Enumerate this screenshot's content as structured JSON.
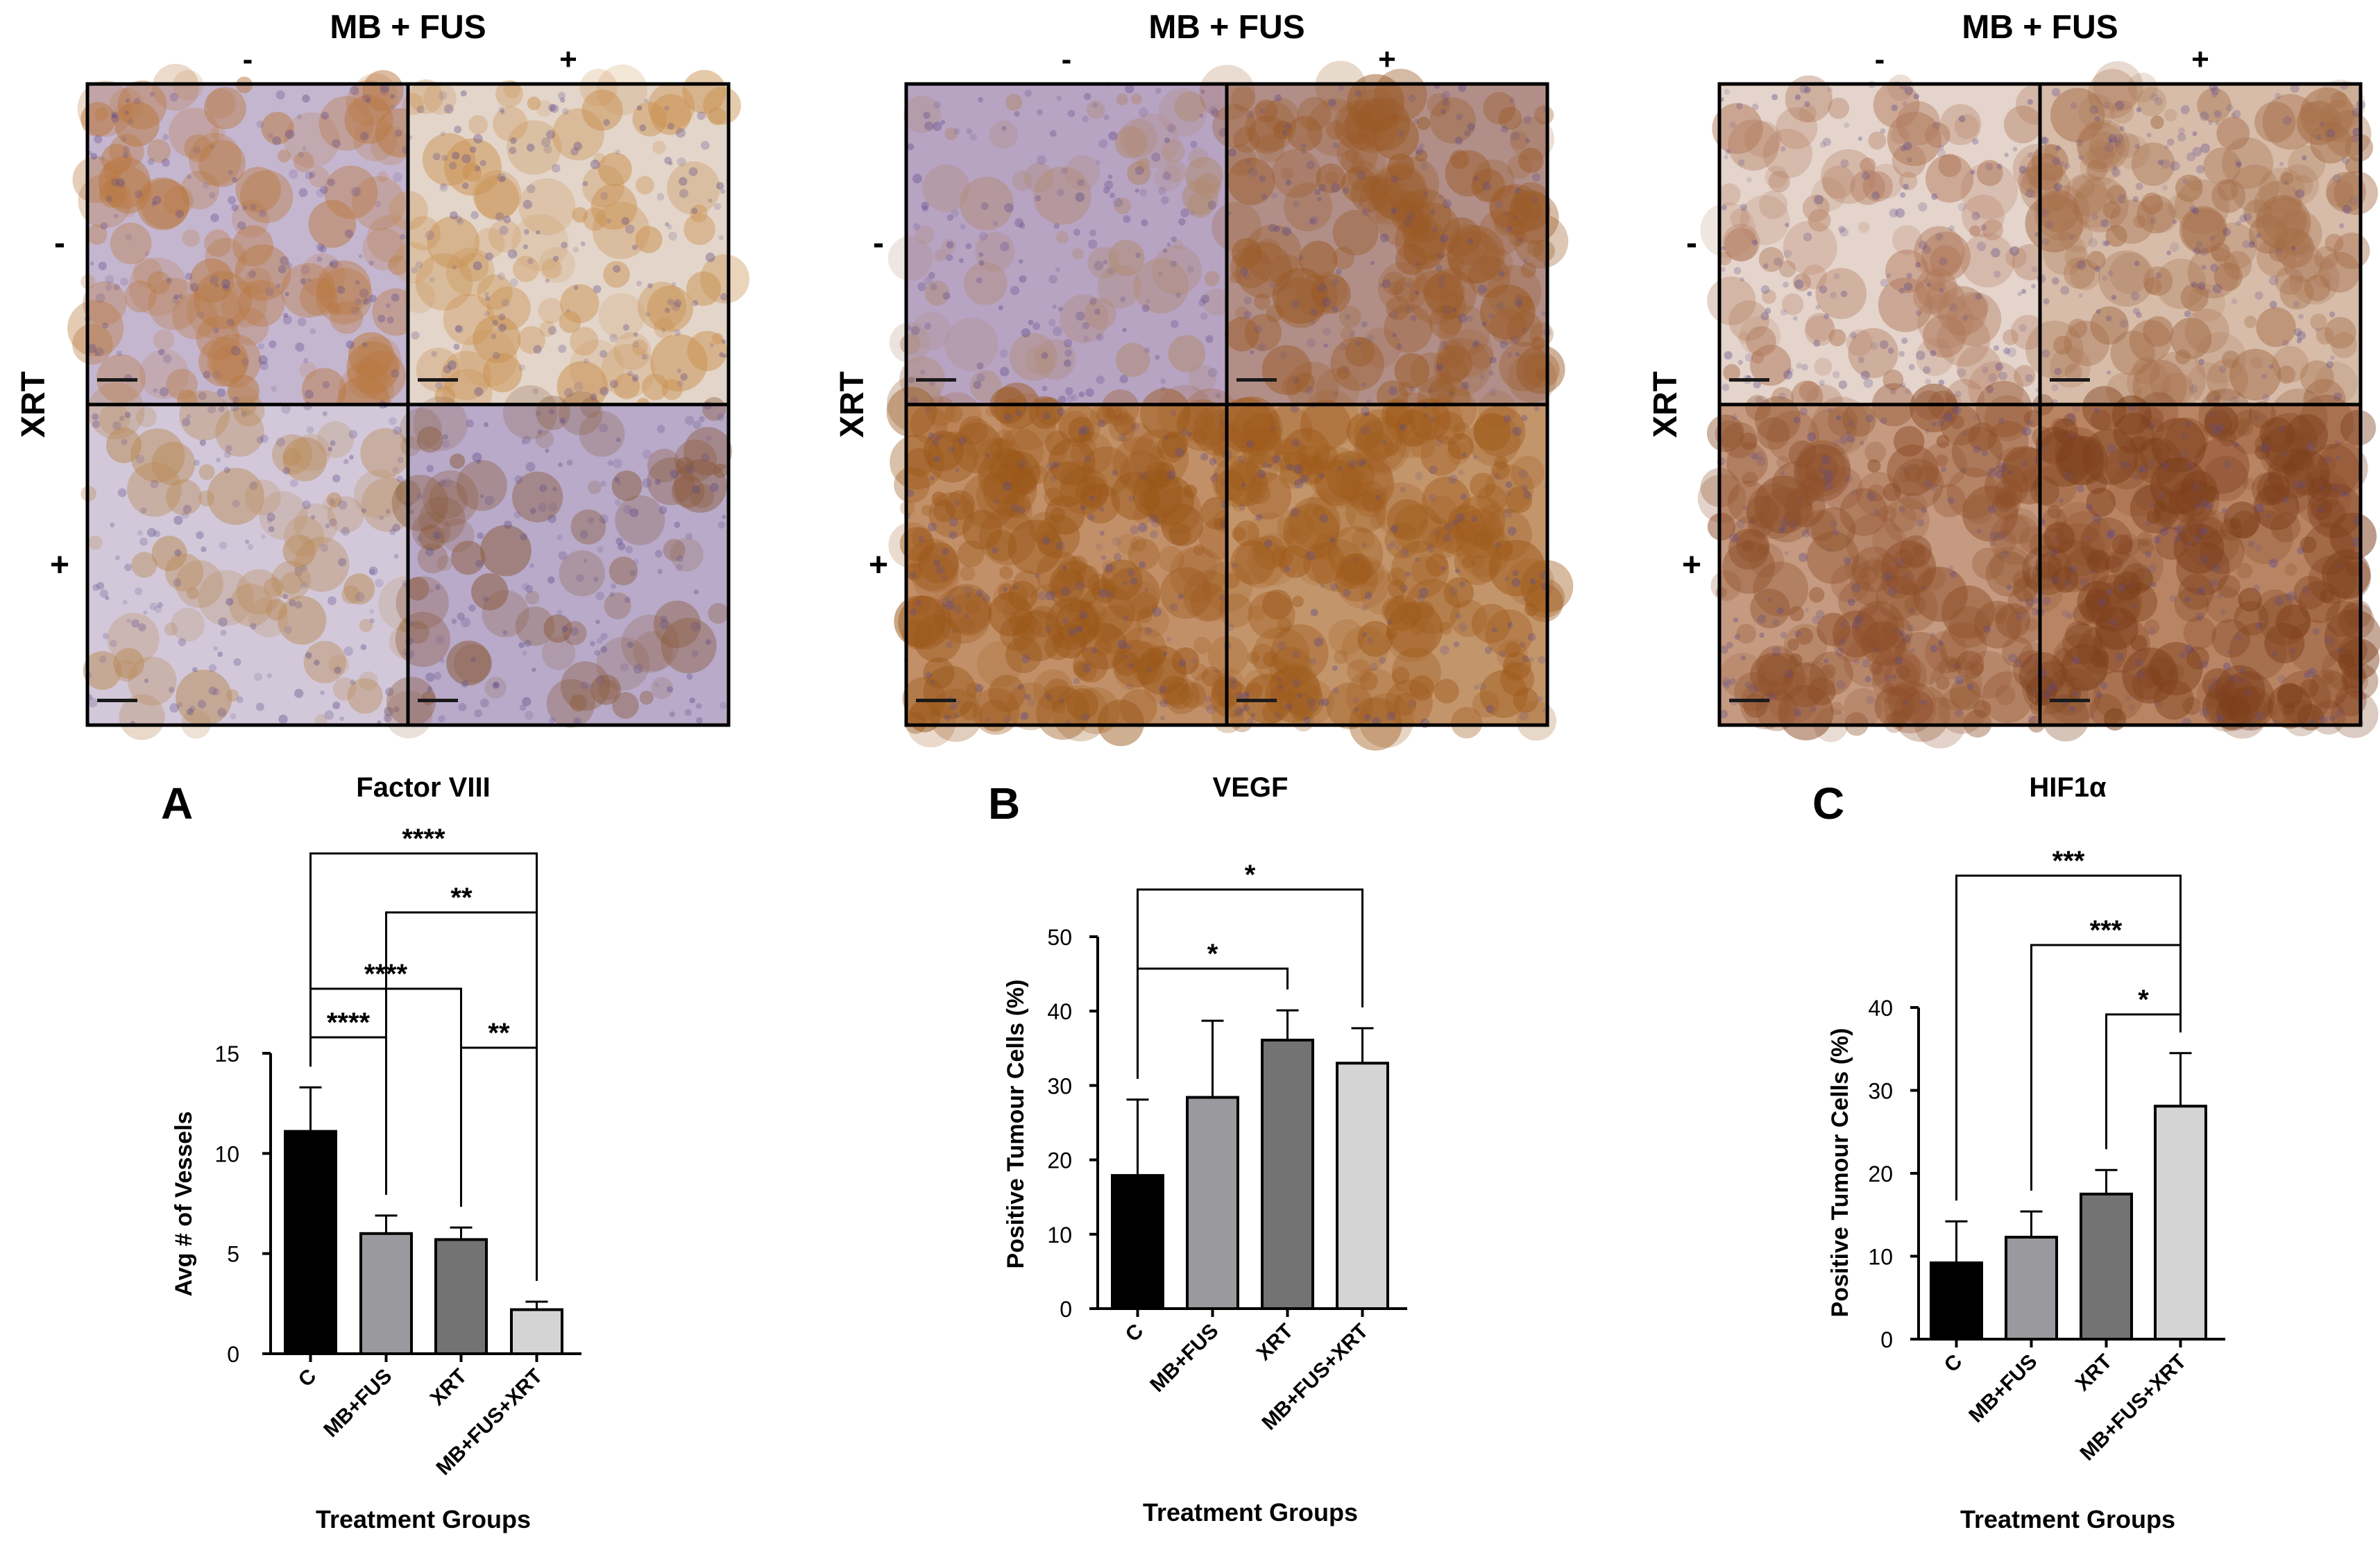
{
  "micrographs": [
    {
      "column_label": "MB + FUS",
      "col_minus": "-",
      "col_plus": "+",
      "row_axis": "XRT",
      "row_minus": "-",
      "row_plus": "+",
      "tiles": [
        {
          "base": "#c5b6cf",
          "stain": "#b9783f",
          "density": 0.3
        },
        {
          "base": "#e3d5c9",
          "stain": "#c9904e",
          "density": 0.22
        },
        {
          "base": "#d2c8d9",
          "stain": "#b98a56",
          "density": 0.14
        },
        {
          "base": "#b8aac8",
          "stain": "#8a5a3a",
          "density": 0.16
        }
      ]
    },
    {
      "column_label": "MB + FUS",
      "col_minus": "-",
      "col_plus": "+",
      "row_axis": "XRT",
      "row_minus": "-",
      "row_plus": "+",
      "tiles": [
        {
          "base": "#b7a3c2",
          "stain": "#b08a70",
          "density": 0.1
        },
        {
          "base": "#b18f88",
          "stain": "#9a5a26",
          "density": 0.55
        },
        {
          "base": "#c29068",
          "stain": "#9a5719",
          "density": 0.85
        },
        {
          "base": "#c3956b",
          "stain": "#9f5b1c",
          "density": 0.78
        }
      ]
    },
    {
      "column_label": "MB + FUS",
      "col_minus": "-",
      "col_plus": "+",
      "row_axis": "XRT",
      "row_minus": "-",
      "row_plus": "+",
      "tiles": [
        {
          "base": "#e4d4cb",
          "stain": "#b0785a",
          "density": 0.3
        },
        {
          "base": "#d6bca9",
          "stain": "#a56d48",
          "density": 0.5
        },
        {
          "base": "#c59a80",
          "stain": "#8e4f2a",
          "density": 0.75
        },
        {
          "base": "#b98463",
          "stain": "#7d3f1c",
          "density": 0.85
        }
      ]
    }
  ],
  "chart_data": [
    {
      "type": "bar",
      "panel_letter": "A",
      "title": "Factor VIII",
      "ylabel": "Avg # of Vessels",
      "xlabel": "Treatment Groups",
      "categories": [
        "C",
        "MB+FUS",
        "XRT",
        "MB+FUS+XRT"
      ],
      "values": [
        11.1,
        6.0,
        5.7,
        2.2
      ],
      "errors": [
        2.2,
        0.9,
        0.6,
        0.4
      ],
      "ylim": [
        0,
        15
      ],
      "yticks": [
        0,
        5,
        10,
        15
      ],
      "colors": [
        "#000000",
        "#9a9a9e",
        "#737373",
        "#d4d4d4"
      ],
      "comparisons": [
        {
          "from": 0,
          "to": 3,
          "label": "****"
        },
        {
          "from": 1,
          "to": 3,
          "label": "**"
        },
        {
          "from": 0,
          "to": 2,
          "label": "****"
        },
        {
          "from": 0,
          "to": 1,
          "label": "****"
        },
        {
          "from": 2,
          "to": 3,
          "label": "**"
        }
      ]
    },
    {
      "type": "bar",
      "panel_letter": "B",
      "title": "VEGF",
      "ylabel": "Positive Tumour Cells (%)",
      "xlabel": "Treatment Groups",
      "categories": [
        "C",
        "MB+FUS",
        "XRT",
        "MB+FUS+XRT"
      ],
      "values": [
        17.9,
        28.4,
        36.1,
        33.0
      ],
      "errors": [
        10.2,
        10.3,
        4.0,
        4.7
      ],
      "ylim": [
        0,
        50
      ],
      "yticks": [
        0,
        10,
        20,
        30,
        40,
        50
      ],
      "colors": [
        "#000000",
        "#9a9a9e",
        "#737373",
        "#d4d4d4"
      ],
      "comparisons": [
        {
          "from": 0,
          "to": 3,
          "label": "*"
        },
        {
          "from": 0,
          "to": 2,
          "label": "*"
        }
      ]
    },
    {
      "type": "bar",
      "panel_letter": "C",
      "title": "HIF1α",
      "ylabel": "Positive Tumour Cells (%)",
      "xlabel": "Treatment Groups",
      "categories": [
        "C",
        "MB+FUS",
        "XRT",
        "MB+FUS+XRT"
      ],
      "values": [
        9.2,
        12.3,
        17.5,
        28.1
      ],
      "errors": [
        5.0,
        3.1,
        2.9,
        6.4
      ],
      "ylim": [
        0,
        40
      ],
      "yticks": [
        0,
        10,
        20,
        30,
        40
      ],
      "colors": [
        "#000000",
        "#9a9a9e",
        "#737373",
        "#d4d4d4"
      ],
      "comparisons": [
        {
          "from": 0,
          "to": 3,
          "label": "***"
        },
        {
          "from": 1,
          "to": 3,
          "label": "***"
        },
        {
          "from": 2,
          "to": 3,
          "label": "*"
        }
      ]
    }
  ]
}
